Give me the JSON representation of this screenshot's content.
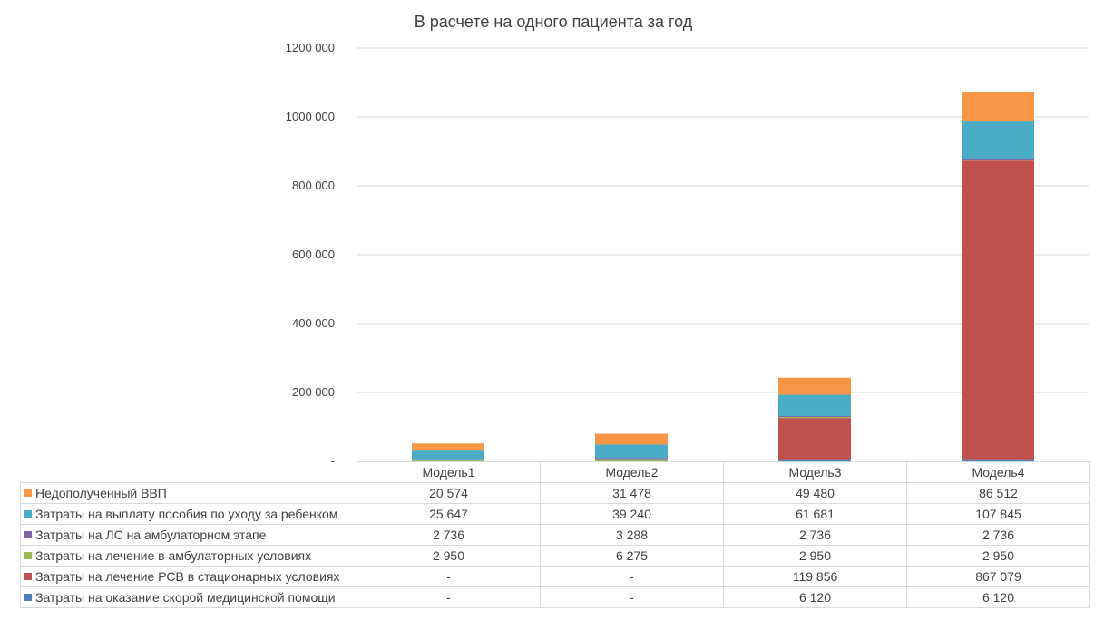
{
  "chart_data": {
    "type": "bar",
    "stacked": true,
    "title": "В расчете на одного пациента за год",
    "categories": [
      "Модель1",
      "Модель2",
      "Модель3",
      "Модель4"
    ],
    "ylim": [
      0,
      1200000
    ],
    "yticks": [
      "-",
      "200 000",
      "400 000",
      "600 000",
      "800 000",
      "1000 000",
      "1200 000"
    ],
    "grid": true,
    "legend": "data-table",
    "series": [
      {
        "name": "Затраты на оказание скорой медицинской помощи",
        "color": "#4f81bd",
        "values": [
          0,
          0,
          6120,
          6120
        ],
        "labels": [
          "-",
          "-",
          "6 120",
          "6 120"
        ]
      },
      {
        "name": "Затраты на лечение РСВ в стационарных условиях",
        "color": "#c0504d",
        "values": [
          0,
          0,
          119856,
          867079
        ],
        "labels": [
          "-",
          "-",
          "119 856",
          "867 079"
        ]
      },
      {
        "name": "Затраты на лечение в амбулаторных условиях",
        "color": "#9bbb59",
        "values": [
          2950,
          6275,
          2950,
          2950
        ],
        "labels": [
          "2 950",
          "6 275",
          "2 950",
          "2 950"
        ]
      },
      {
        "name": "Затраты на ЛС на амбулаторном этапе",
        "color": "#8064a2",
        "values": [
          2736,
          3288,
          2736,
          2736
        ],
        "labels": [
          "2 736",
          "3 288",
          "2 736",
          "2 736"
        ]
      },
      {
        "name": "Затраты на выплату пособия по уходу за ребенком",
        "color": "#4bacc6",
        "values": [
          25647,
          39240,
          61681,
          107845
        ],
        "labels": [
          "25 647",
          "39 240",
          "61 681",
          "107 845"
        ]
      },
      {
        "name": "Недополученный ВВП",
        "color": "#f79646",
        "values": [
          20574,
          31478,
          49480,
          86512
        ],
        "labels": [
          "20 574",
          "31 478",
          "49 480",
          "86 512"
        ]
      }
    ]
  }
}
